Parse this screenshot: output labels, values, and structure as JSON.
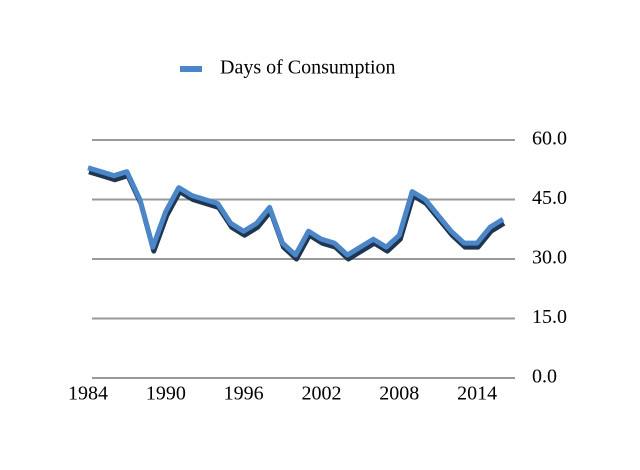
{
  "chart_data": {
    "type": "line",
    "x": [
      1984,
      1985,
      1986,
      1987,
      1988,
      1989,
      1990,
      1991,
      1992,
      1993,
      1994,
      1995,
      1996,
      1997,
      1998,
      1999,
      2000,
      2001,
      2002,
      2003,
      2004,
      2005,
      2006,
      2007,
      2008,
      2009,
      2010,
      2011,
      2012,
      2013,
      2014,
      2015,
      2016
    ],
    "series": [
      {
        "name": "Days of Consumption",
        "color": "#4a86c8",
        "values": [
          53,
          52,
          51,
          52,
          45,
          33,
          42,
          48,
          46,
          45,
          44,
          39,
          37,
          39,
          43,
          34,
          31,
          37,
          35,
          34,
          31,
          33,
          35,
          33,
          36,
          47,
          45,
          41,
          37,
          34,
          34,
          38,
          40
        ]
      }
    ],
    "xlim": [
      1984,
      2016
    ],
    "xticks": [
      1984,
      1990,
      1996,
      2002,
      2008,
      2014
    ],
    "ylim": [
      0,
      60
    ],
    "yticks": [
      {
        "value": 0,
        "label": "0.0"
      },
      {
        "value": 15,
        "label": "15.0"
      },
      {
        "value": 30,
        "label": "30.0"
      },
      {
        "value": 45,
        "label": "45.0"
      },
      {
        "value": 60,
        "label": "60.0"
      }
    ],
    "grid": true,
    "legend": "top"
  }
}
